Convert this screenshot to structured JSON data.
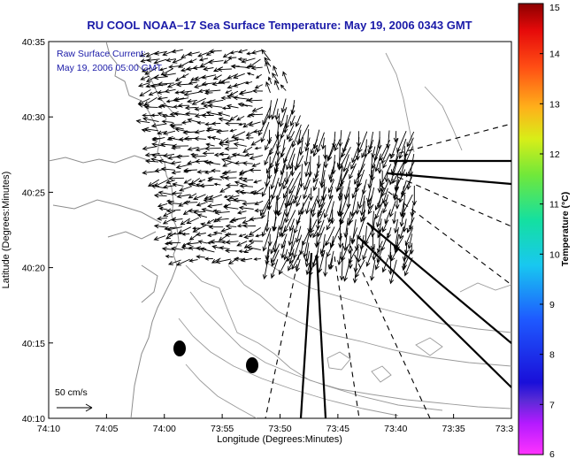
{
  "title": "RU COOL  NOAA–17  Sea Surface Temperature:  May 19, 2006 0343 GMT",
  "annotation": {
    "line1": "Raw Surface Current:",
    "line2": "May 19, 2006 05:00 GMT"
  },
  "scale_label": "50 cm/s",
  "chart_data": {
    "type": "map",
    "xlabel": "Longitude (Degrees:Minutes)",
    "ylabel": "Latitude (Degrees:Minutes)",
    "x_ticks": [
      "74:10",
      "74:05",
      "74:00",
      "73:55",
      "73:50",
      "73:45",
      "73:40",
      "73:35",
      "73:3"
    ],
    "y_ticks": [
      "40:35",
      "40:30",
      "40:25",
      "40:20",
      "40:15",
      "40:10"
    ],
    "colorbar": {
      "label": "Temperature (°C)",
      "ticks": [
        "15",
        "14",
        "13",
        "12",
        "11",
        "10",
        "9",
        "8",
        "7",
        "6"
      ],
      "range": [
        6,
        15
      ]
    },
    "colors": {
      "title": "#1a1aa8",
      "contours": "#8c8c8c",
      "vectors": "#000000"
    }
  }
}
